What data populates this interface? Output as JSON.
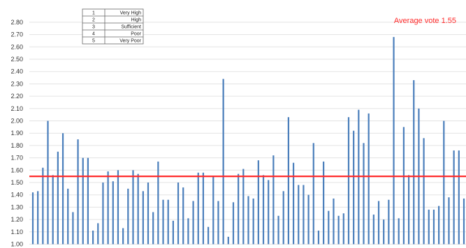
{
  "chart_data": {
    "type": "bar",
    "ylim": [
      1.0,
      2.85
    ],
    "yticks": [
      "1.00",
      "1.10",
      "1.20",
      "1.30",
      "1.40",
      "1.50",
      "1.60",
      "1.70",
      "1.80",
      "1.90",
      "2.00",
      "2.10",
      "2.20",
      "2.30",
      "2.40",
      "2.50",
      "2.60",
      "2.70",
      "2.80"
    ],
    "grid": true,
    "bar_color": "#4a7ebb",
    "values": [
      1.42,
      1.43,
      1.62,
      2.0,
      1.56,
      1.75,
      1.9,
      1.45,
      1.26,
      1.85,
      1.7,
      1.7,
      1.11,
      1.17,
      1.5,
      1.59,
      1.51,
      1.6,
      1.13,
      1.45,
      1.6,
      1.57,
      1.43,
      1.5,
      1.26,
      1.67,
      1.36,
      1.36,
      1.19,
      1.5,
      1.46,
      1.21,
      1.35,
      1.58,
      1.58,
      1.14,
      1.55,
      1.35,
      2.34,
      1.06,
      1.34,
      1.57,
      1.61,
      1.39,
      1.37,
      1.68,
      1.56,
      1.52,
      1.72,
      1.23,
      1.43,
      2.03,
      1.66,
      1.48,
      1.48,
      1.4,
      1.82,
      1.11,
      1.67,
      1.27,
      1.37,
      1.23,
      1.25,
      2.03,
      1.92,
      2.09,
      1.82,
      2.06,
      1.24,
      1.35,
      1.2,
      1.36,
      2.68,
      1.21,
      1.95,
      1.56,
      2.33,
      2.1,
      1.86,
      1.28,
      1.28,
      1.31,
      2.0,
      1.38,
      1.76,
      1.76,
      1.37
    ],
    "reference_line": {
      "value": 1.55,
      "color": "#ff2b2b"
    },
    "annotation": {
      "text": "Average vote 1.55",
      "color": "#ff2b2b"
    },
    "legend_table": [
      {
        "code": "1",
        "label": "Very High"
      },
      {
        "code": "2",
        "label": "High"
      },
      {
        "code": "3",
        "label": "Sufficient"
      },
      {
        "code": "4",
        "label": "Poor"
      },
      {
        "code": "5",
        "label": "Very Poor"
      }
    ]
  }
}
